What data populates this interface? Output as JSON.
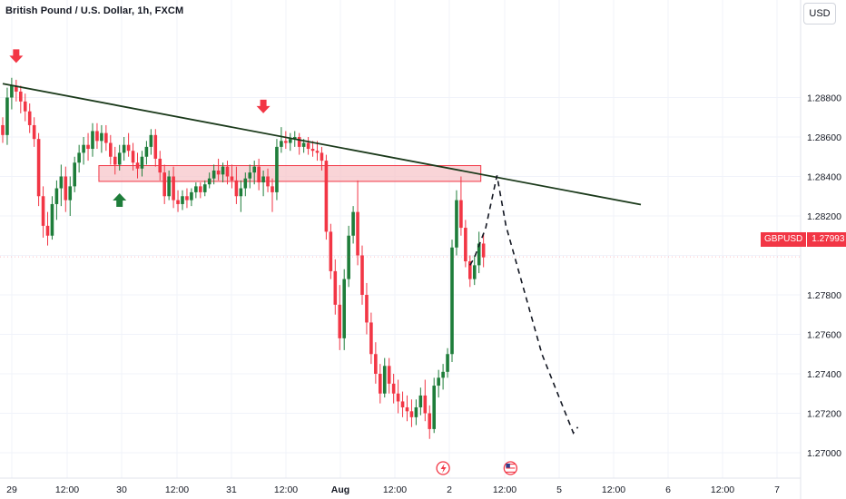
{
  "header": {
    "title": "British Pound / U.S. Dollar, 1h, FXCM",
    "currency_button": "USD"
  },
  "price_tag": {
    "symbol": "GBPUSD",
    "value": "1.27993"
  },
  "colors": {
    "up": "#26a69a",
    "up_body": "#1e7d3a",
    "down": "#f23645",
    "trendline": "#1b3a1b",
    "zone_fill": "#f7c6c9",
    "zone_border": "#f23645",
    "grid": "#f0f3fa",
    "axis_text": "#131722"
  },
  "chart_data": {
    "type": "candlestick",
    "symbol": "GBPUSD",
    "timeframe": "1h",
    "yaxis": {
      "ticks": [
        1.27,
        1.272,
        1.274,
        1.276,
        1.278,
        1.28,
        1.282,
        1.284,
        1.286,
        1.288
      ],
      "tick_labels": [
        "1.27000",
        "1.27200",
        "1.27400",
        "1.27600",
        "1.27800",
        "",
        "1.28200",
        "1.28400",
        "1.28600",
        "1.28800"
      ],
      "range": [
        1.26915,
        1.29
      ],
      "side": "right"
    },
    "xaxis": {
      "ticks": [
        "29",
        "12:00",
        "30",
        "12:00",
        "31",
        "12:00",
        "Aug",
        "12:00",
        "2",
        "12:00",
        "5",
        "12:00",
        "6",
        "12:00",
        "7"
      ],
      "bold": [
        "Aug"
      ]
    },
    "last_price": 1.27993,
    "candles": [
      [
        1.2866,
        1.287,
        1.2857,
        1.2861
      ],
      [
        1.2861,
        1.2885,
        1.2856,
        1.288
      ],
      [
        1.288,
        1.289,
        1.2874,
        1.2886
      ],
      [
        1.2886,
        1.2889,
        1.2878,
        1.2883
      ],
      [
        1.2883,
        1.2886,
        1.2872,
        1.2878
      ],
      [
        1.2878,
        1.2882,
        1.2868,
        1.2873
      ],
      [
        1.2873,
        1.2877,
        1.2862,
        1.2866
      ],
      [
        1.2866,
        1.287,
        1.2855,
        1.2859
      ],
      [
        1.2859,
        1.2862,
        1.2825,
        1.283
      ],
      [
        1.283,
        1.2835,
        1.2809,
        1.2815
      ],
      [
        1.2815,
        1.2822,
        1.2805,
        1.281
      ],
      [
        1.281,
        1.283,
        1.2808,
        1.2826
      ],
      [
        1.2826,
        1.2838,
        1.2818,
        1.2834
      ],
      [
        1.2834,
        1.2846,
        1.2825,
        1.284
      ],
      [
        1.284,
        1.2845,
        1.2822,
        1.2828
      ],
      [
        1.2828,
        1.284,
        1.282,
        1.2835
      ],
      [
        1.2835,
        1.285,
        1.2832,
        1.2847
      ],
      [
        1.2847,
        1.2856,
        1.2842,
        1.2852
      ],
      [
        1.2852,
        1.286,
        1.2846,
        1.2856
      ],
      [
        1.2856,
        1.2862,
        1.2848,
        1.2854
      ],
      [
        1.2854,
        1.2867,
        1.285,
        1.2863
      ],
      [
        1.2863,
        1.2867,
        1.2854,
        1.2858
      ],
      [
        1.2858,
        1.2866,
        1.2852,
        1.2862
      ],
      [
        1.2862,
        1.2866,
        1.2853,
        1.2857
      ],
      [
        1.2857,
        1.2861,
        1.2846,
        1.285
      ],
      [
        1.285,
        1.2855,
        1.2841,
        1.2846
      ],
      [
        1.2846,
        1.2856,
        1.2843,
        1.2852
      ],
      [
        1.2852,
        1.286,
        1.2848,
        1.2856
      ],
      [
        1.2856,
        1.2862,
        1.285,
        1.2853
      ],
      [
        1.2853,
        1.2857,
        1.2843,
        1.2847
      ],
      [
        1.2847,
        1.2852,
        1.2839,
        1.2844
      ],
      [
        1.2844,
        1.2853,
        1.284,
        1.285
      ],
      [
        1.285,
        1.2858,
        1.2846,
        1.2855
      ],
      [
        1.2855,
        1.2864,
        1.2851,
        1.2861
      ],
      [
        1.2861,
        1.2864,
        1.2845,
        1.2849
      ],
      [
        1.2849,
        1.2853,
        1.2838,
        1.2842
      ],
      [
        1.2842,
        1.2846,
        1.2826,
        1.283
      ],
      [
        1.283,
        1.2843,
        1.2828,
        1.284
      ],
      [
        1.284,
        1.2845,
        1.2824,
        1.2828
      ],
      [
        1.2828,
        1.2833,
        1.2822,
        1.2826
      ],
      [
        1.2826,
        1.2833,
        1.2823,
        1.283
      ],
      [
        1.283,
        1.2834,
        1.2824,
        1.2828
      ],
      [
        1.2828,
        1.2834,
        1.2825,
        1.2832
      ],
      [
        1.2832,
        1.2837,
        1.2829,
        1.2835
      ],
      [
        1.2835,
        1.2837,
        1.2829,
        1.2832
      ],
      [
        1.2832,
        1.2838,
        1.283,
        1.2836
      ],
      [
        1.2836,
        1.2842,
        1.2834,
        1.2839
      ],
      [
        1.2839,
        1.2846,
        1.2836,
        1.2843
      ],
      [
        1.2843,
        1.2849,
        1.2838,
        1.2841
      ],
      [
        1.2841,
        1.2847,
        1.2837,
        1.2845
      ],
      [
        1.2845,
        1.2848,
        1.2836,
        1.284
      ],
      [
        1.284,
        1.2846,
        1.2834,
        1.2838
      ],
      [
        1.2838,
        1.2845,
        1.2826,
        1.283
      ],
      [
        1.283,
        1.2838,
        1.2822,
        1.2834
      ],
      [
        1.2834,
        1.2842,
        1.283,
        1.2839
      ],
      [
        1.2839,
        1.2846,
        1.2834,
        1.2842
      ],
      [
        1.2842,
        1.2848,
        1.2836,
        1.2845
      ],
      [
        1.2845,
        1.2849,
        1.2833,
        1.2837
      ],
      [
        1.2837,
        1.2843,
        1.283,
        1.284
      ],
      [
        1.284,
        1.2844,
        1.2832,
        1.2835
      ],
      [
        1.2835,
        1.2839,
        1.2822,
        1.2832
      ],
      [
        1.2832,
        1.2859,
        1.2828,
        1.2855
      ],
      [
        1.2855,
        1.2865,
        1.2852,
        1.2858
      ],
      [
        1.2858,
        1.2863,
        1.2854,
        1.2857
      ],
      [
        1.2857,
        1.2862,
        1.2853,
        1.2859
      ],
      [
        1.2859,
        1.2863,
        1.2855,
        1.286
      ],
      [
        1.286,
        1.2862,
        1.2851,
        1.2855
      ],
      [
        1.2855,
        1.2859,
        1.2852,
        1.2857
      ],
      [
        1.2857,
        1.286,
        1.2851,
        1.2854
      ],
      [
        1.2854,
        1.2858,
        1.285,
        1.2853
      ],
      [
        1.2853,
        1.2858,
        1.2848,
        1.2852
      ],
      [
        1.2852,
        1.2855,
        1.2843,
        1.2848
      ],
      [
        1.2848,
        1.2851,
        1.2808,
        1.2812
      ],
      [
        1.2812,
        1.2816,
        1.2788,
        1.2792
      ],
      [
        1.2792,
        1.2798,
        1.277,
        1.2775
      ],
      [
        1.2775,
        1.2785,
        1.2752,
        1.2758
      ],
      [
        1.2758,
        1.2793,
        1.2752,
        1.2788
      ],
      [
        1.2788,
        1.2815,
        1.2784,
        1.281
      ],
      [
        1.281,
        1.2825,
        1.2806,
        1.2822
      ],
      [
        1.2822,
        1.2838,
        1.2795,
        1.28
      ],
      [
        1.28,
        1.2805,
        1.2775,
        1.278
      ],
      [
        1.278,
        1.2786,
        1.276,
        1.2766
      ],
      [
        1.2766,
        1.2771,
        1.2745,
        1.275
      ],
      [
        1.275,
        1.2756,
        1.2735,
        1.274
      ],
      [
        1.274,
        1.2745,
        1.2725,
        1.273
      ],
      [
        1.273,
        1.2748,
        1.2728,
        1.2744
      ],
      [
        1.2744,
        1.2748,
        1.273,
        1.2735
      ],
      [
        1.2735,
        1.274,
        1.2725,
        1.273
      ],
      [
        1.273,
        1.2737,
        1.272,
        1.2726
      ],
      [
        1.2726,
        1.2731,
        1.2718,
        1.2723
      ],
      [
        1.2723,
        1.2729,
        1.2716,
        1.2721
      ],
      [
        1.2721,
        1.2727,
        1.2713,
        1.2718
      ],
      [
        1.2718,
        1.2727,
        1.2714,
        1.2723
      ],
      [
        1.2723,
        1.2733,
        1.2719,
        1.2729
      ],
      [
        1.2729,
        1.2737,
        1.2716,
        1.272
      ],
      [
        1.272,
        1.2724,
        1.2707,
        1.2712
      ],
      [
        1.2712,
        1.2738,
        1.271,
        1.2734
      ],
      [
        1.2734,
        1.2742,
        1.2728,
        1.2738
      ],
      [
        1.2738,
        1.2745,
        1.2732,
        1.2741
      ],
      [
        1.2741,
        1.2753,
        1.2738,
        1.275
      ],
      [
        1.275,
        1.2808,
        1.2746,
        1.2804
      ],
      [
        1.2804,
        1.2833,
        1.28,
        1.2828
      ],
      [
        1.2828,
        1.284,
        1.281,
        1.2814
      ],
      [
        1.2814,
        1.2818,
        1.2794,
        1.2797
      ],
      [
        1.2797,
        1.28,
        1.2784,
        1.2788
      ],
      [
        1.2788,
        1.28,
        1.2785,
        1.2795
      ],
      [
        1.2795,
        1.2812,
        1.2791,
        1.2806
      ],
      [
        1.2806,
        1.2811,
        1.2794,
        1.2799
      ]
    ],
    "annotations": {
      "trendline": {
        "from": [
          0,
          1.2887
        ],
        "to": [
          140,
          1.28255
        ]
      },
      "resistance_zone": {
        "from": 21,
        "to": 106,
        "top": 1.28455,
        "bottom": 1.28375
      },
      "arrows_down": [
        {
          "index": 3,
          "price": 1.2898
        },
        {
          "index": 58,
          "price": 1.28725
        }
      ],
      "arrows_up": [
        {
          "index": 26,
          "price": 1.28315
        }
      ],
      "projection": [
        [
          104,
          1.2795
        ],
        [
          105,
          1.2799
        ],
        [
          107.5,
          1.2814
        ],
        [
          110,
          1.28405
        ],
        [
          112,
          1.2815
        ],
        [
          120,
          1.275
        ],
        [
          127,
          1.271
        ],
        [
          128,
          1.2713
        ]
      ],
      "event_icons": [
        {
          "index": 98,
          "kind": "flash-icon"
        },
        {
          "index": 113,
          "kind": "us-flag-icon"
        }
      ]
    }
  }
}
